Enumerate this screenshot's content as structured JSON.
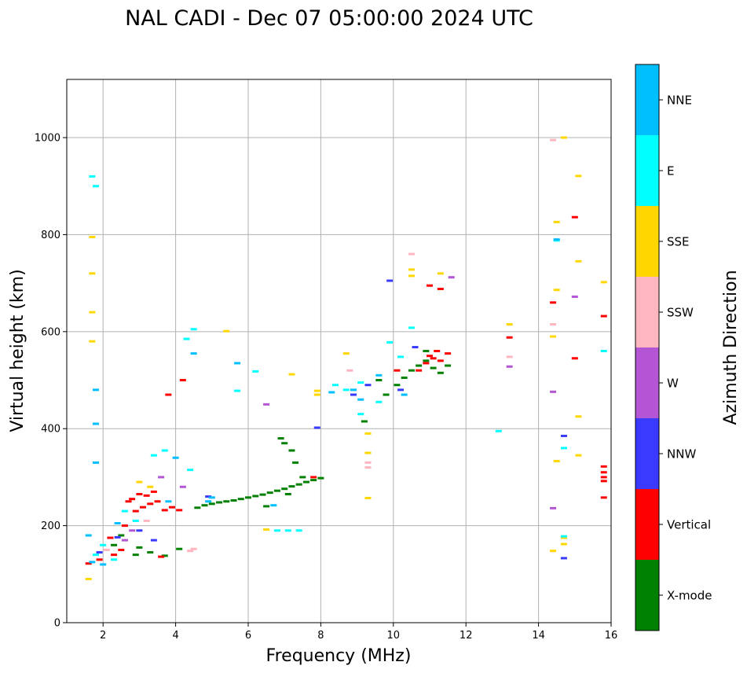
{
  "chart_data": {
    "type": "scatter",
    "title": "NAL CADI - Dec 07 05:00:00 2024 UTC",
    "xlabel": "Frequency (MHz)",
    "ylabel": "Virtual height (km)",
    "xlim": [
      1,
      16
    ],
    "ylim": [
      0,
      1120
    ],
    "xticks": [
      2,
      4,
      6,
      8,
      10,
      12,
      14,
      16
    ],
    "yticks": [
      0,
      200,
      400,
      600,
      800,
      1000
    ],
    "grid": true,
    "colorbar": {
      "title": "Azimuth Direction",
      "categories": [
        {
          "name": "X-mode",
          "color": "#008000"
        },
        {
          "name": "Vertical",
          "color": "#ff0000"
        },
        {
          "name": "NNW",
          "color": "#3a3aff"
        },
        {
          "name": "W",
          "color": "#b455d6"
        },
        {
          "name": "SSW",
          "color": "#ffb6c1"
        },
        {
          "name": "SSE",
          "color": "#ffd700"
        },
        {
          "name": "E",
          "color": "#00ffff"
        },
        {
          "name": "NNE",
          "color": "#00bfff"
        }
      ]
    },
    "series": [
      {
        "name": "X-mode",
        "points": [
          [
            4.6,
            237
          ],
          [
            4.8,
            242
          ],
          [
            5.0,
            245
          ],
          [
            5.2,
            248
          ],
          [
            5.4,
            250
          ],
          [
            5.6,
            252
          ],
          [
            5.8,
            255
          ],
          [
            6.0,
            258
          ],
          [
            6.2,
            261
          ],
          [
            6.4,
            264
          ],
          [
            6.6,
            268
          ],
          [
            6.8,
            272
          ],
          [
            7.0,
            276
          ],
          [
            7.2,
            281
          ],
          [
            7.4,
            285
          ],
          [
            7.6,
            290
          ],
          [
            7.8,
            294
          ],
          [
            8.0,
            298
          ],
          [
            6.5,
            240
          ],
          [
            7.1,
            265
          ],
          [
            7.5,
            300
          ],
          [
            7.3,
            330
          ],
          [
            7.2,
            355
          ],
          [
            7.0,
            370
          ],
          [
            6.9,
            380
          ],
          [
            9.2,
            415
          ],
          [
            9.6,
            500
          ],
          [
            9.8,
            470
          ],
          [
            10.1,
            490
          ],
          [
            10.3,
            505
          ],
          [
            10.5,
            520
          ],
          [
            10.7,
            530
          ],
          [
            10.9,
            540
          ],
          [
            11.1,
            525
          ],
          [
            11.3,
            515
          ],
          [
            11.5,
            530
          ],
          [
            10.9,
            560
          ],
          [
            2.9,
            140
          ],
          [
            3.3,
            145
          ],
          [
            3.7,
            138
          ],
          [
            4.1,
            152
          ],
          [
            3.0,
            155
          ],
          [
            2.5,
            180
          ],
          [
            2.3,
            160
          ]
        ]
      },
      {
        "name": "Vertical",
        "points": [
          [
            2.9,
            230
          ],
          [
            3.1,
            238
          ],
          [
            3.3,
            245
          ],
          [
            3.5,
            250
          ],
          [
            3.7,
            232
          ],
          [
            3.9,
            238
          ],
          [
            4.1,
            232
          ],
          [
            2.8,
            255
          ],
          [
            3.0,
            265
          ],
          [
            3.2,
            262
          ],
          [
            3.4,
            270
          ],
          [
            2.7,
            250
          ],
          [
            2.5,
            150
          ],
          [
            2.3,
            140
          ],
          [
            1.9,
            130
          ],
          [
            1.6,
            122
          ],
          [
            2.2,
            175
          ],
          [
            2.6,
            200
          ],
          [
            7.8,
            300
          ],
          [
            10.9,
            535
          ],
          [
            11.1,
            545
          ],
          [
            11.3,
            540
          ],
          [
            10.7,
            520
          ],
          [
            11.0,
            550
          ],
          [
            11.2,
            560
          ],
          [
            11.5,
            555
          ],
          [
            3.8,
            470
          ],
          [
            4.2,
            500
          ],
          [
            10.1,
            520
          ],
          [
            15.0,
            545
          ],
          [
            15.0,
            836
          ],
          [
            15.8,
            632
          ],
          [
            14.4,
            660
          ],
          [
            13.2,
            588
          ],
          [
            15.8,
            258
          ],
          [
            15.8,
            292
          ],
          [
            15.8,
            300
          ],
          [
            15.8,
            310
          ],
          [
            15.8,
            322
          ],
          [
            11.3,
            688
          ],
          [
            11.0,
            695
          ],
          [
            3.6,
            136
          ]
        ]
      },
      {
        "name": "NNW",
        "points": [
          [
            14.7,
            385
          ],
          [
            14.7,
            133
          ],
          [
            9.9,
            705
          ],
          [
            7.9,
            402
          ],
          [
            10.6,
            568
          ],
          [
            3.0,
            190
          ],
          [
            2.4,
            176
          ],
          [
            1.9,
            145
          ],
          [
            3.4,
            170
          ],
          [
            4.9,
            260
          ],
          [
            8.9,
            470
          ],
          [
            9.3,
            490
          ],
          [
            10.2,
            480
          ]
        ]
      },
      {
        "name": "W",
        "points": [
          [
            14.4,
            476
          ],
          [
            15.0,
            672
          ],
          [
            13.2,
            528
          ],
          [
            14.4,
            236
          ],
          [
            11.6,
            712
          ],
          [
            6.5,
            450
          ],
          [
            4.2,
            280
          ],
          [
            3.6,
            300
          ],
          [
            2.8,
            190
          ],
          [
            2.6,
            170
          ]
        ]
      },
      {
        "name": "SSW",
        "points": [
          [
            14.4,
            615
          ],
          [
            14.4,
            995
          ],
          [
            13.2,
            548
          ],
          [
            10.5,
            760
          ],
          [
            9.3,
            330
          ],
          [
            9.3,
            320
          ],
          [
            4.4,
            148
          ],
          [
            4.5,
            152
          ],
          [
            3.2,
            210
          ],
          [
            8.8,
            520
          ],
          [
            2.1,
            150
          ]
        ]
      },
      {
        "name": "SSE",
        "points": [
          [
            14.5,
            826
          ],
          [
            14.5,
            686
          ],
          [
            14.4,
            590
          ],
          [
            15.1,
            921
          ],
          [
            15.1,
            745
          ],
          [
            15.8,
            702
          ],
          [
            15.1,
            425
          ],
          [
            15.1,
            345
          ],
          [
            14.5,
            333
          ],
          [
            14.7,
            175
          ],
          [
            14.7,
            162
          ],
          [
            14.4,
            148
          ],
          [
            14.7,
            1000
          ],
          [
            13.2,
            615
          ],
          [
            10.5,
            728
          ],
          [
            10.5,
            715
          ],
          [
            11.3,
            720
          ],
          [
            9.3,
            390
          ],
          [
            9.3,
            350
          ],
          [
            9.3,
            257
          ],
          [
            8.7,
            555
          ],
          [
            7.9,
            478
          ],
          [
            7.2,
            512
          ],
          [
            6.5,
            192
          ],
          [
            5.4,
            601
          ],
          [
            1.7,
            720
          ],
          [
            1.7,
            640
          ],
          [
            1.7,
            580
          ],
          [
            1.7,
            795
          ],
          [
            3.0,
            290
          ],
          [
            3.3,
            280
          ],
          [
            1.6,
            90
          ],
          [
            7.9,
            470
          ]
        ]
      },
      {
        "name": "E",
        "points": [
          [
            14.5,
            788
          ],
          [
            14.7,
            360
          ],
          [
            15.8,
            560
          ],
          [
            12.9,
            395
          ],
          [
            14.7,
            178
          ],
          [
            10.5,
            608
          ],
          [
            9.9,
            578
          ],
          [
            10.2,
            548
          ],
          [
            9.1,
            495
          ],
          [
            9.1,
            430
          ],
          [
            9.6,
            455
          ],
          [
            8.7,
            480
          ],
          [
            8.4,
            490
          ],
          [
            6.8,
            190
          ],
          [
            7.1,
            190
          ],
          [
            7.4,
            190
          ],
          [
            4.3,
            585
          ],
          [
            4.5,
            605
          ],
          [
            5.7,
            478
          ],
          [
            6.2,
            518
          ],
          [
            3.7,
            355
          ],
          [
            3.4,
            345
          ],
          [
            2.6,
            230
          ],
          [
            2.9,
            210
          ],
          [
            4.4,
            315
          ],
          [
            1.7,
            920
          ],
          [
            1.8,
            900
          ],
          [
            2.0,
            160
          ],
          [
            2.3,
            130
          ],
          [
            1.8,
            140
          ]
        ]
      },
      {
        "name": "NNE",
        "points": [
          [
            14.5,
            790
          ],
          [
            9.6,
            510
          ],
          [
            9.1,
            460
          ],
          [
            8.9,
            480
          ],
          [
            10.3,
            470
          ],
          [
            8.3,
            475
          ],
          [
            6.7,
            242
          ],
          [
            5.0,
            258
          ],
          [
            4.9,
            250
          ],
          [
            4.0,
            340
          ],
          [
            3.8,
            250
          ],
          [
            4.5,
            555
          ],
          [
            5.7,
            535
          ],
          [
            1.8,
            410
          ],
          [
            1.8,
            480
          ],
          [
            1.8,
            330
          ],
          [
            1.6,
            180
          ],
          [
            2.4,
            205
          ],
          [
            2.0,
            120
          ],
          [
            1.7,
            125
          ]
        ]
      }
    ]
  }
}
